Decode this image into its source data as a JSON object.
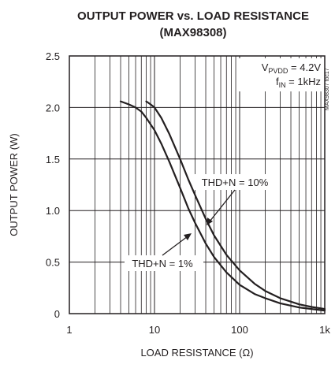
{
  "chart_data": {
    "type": "line",
    "title": "OUTPUT POWER vs. LOAD RESISTANCE",
    "subtitle": "(MAX98308)",
    "xlabel": "LOAD RESISTANCE (Ω)",
    "ylabel": "OUTPUT POWER (W)",
    "x_scale": "log",
    "xlim": [
      1,
      1000
    ],
    "ylim": [
      0,
      2.5
    ],
    "x_ticks": [
      {
        "value": 1,
        "label": "1"
      },
      {
        "value": 10,
        "label": "10"
      },
      {
        "value": 100,
        "label": "100"
      },
      {
        "value": 1000,
        "label": "1k"
      }
    ],
    "y_ticks": [
      {
        "value": 0,
        "label": "0"
      },
      {
        "value": 0.5,
        "label": "0.5"
      },
      {
        "value": 1.0,
        "label": "1.0"
      },
      {
        "value": 1.5,
        "label": "1.5"
      },
      {
        "value": 2.0,
        "label": "2.0"
      },
      {
        "value": 2.5,
        "label": "2.5"
      }
    ],
    "grid": true,
    "conditions": {
      "line1_main": "V",
      "line1_sub": "PVDD",
      "line1_rest": " = 4.2V",
      "line2_main": "f",
      "line2_sub": "IN",
      "line2_rest": " = 1kHz"
    },
    "figure_ref": "MAX98307 toc17",
    "series": [
      {
        "name": "THD+N = 1%",
        "x": [
          4,
          5,
          6,
          7,
          8,
          10,
          12,
          15,
          20,
          25,
          30,
          40,
          50,
          70,
          100,
          150,
          200,
          300,
          500,
          700,
          1000
        ],
        "y": [
          2.06,
          2.03,
          2.0,
          1.96,
          1.9,
          1.78,
          1.65,
          1.47,
          1.22,
          1.02,
          0.88,
          0.68,
          0.55,
          0.4,
          0.28,
          0.19,
          0.15,
          0.1,
          0.06,
          0.045,
          0.03
        ]
      },
      {
        "name": "THD+N = 10%",
        "x": [
          8,
          9,
          10,
          12,
          15,
          20,
          25,
          30,
          40,
          50,
          70,
          100,
          150,
          200,
          300,
          500,
          700,
          1000
        ],
        "y": [
          2.06,
          2.03,
          2.0,
          1.9,
          1.74,
          1.5,
          1.3,
          1.15,
          0.92,
          0.76,
          0.57,
          0.42,
          0.29,
          0.22,
          0.15,
          0.09,
          0.065,
          0.045
        ]
      }
    ],
    "annotations": [
      {
        "text": "THD+N = 10%",
        "points_to": "THD+N = 10%",
        "at_x": 50,
        "at_y": 0.76
      },
      {
        "text": "THD+N = 1%",
        "points_to": "THD+N = 1%",
        "at_x": 30,
        "at_y": 0.88
      }
    ],
    "colors": {
      "line": "#231f20",
      "grid": "#231f20",
      "background": "#ffffff"
    }
  }
}
